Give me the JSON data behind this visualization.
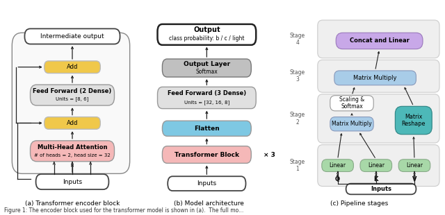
{
  "fig_width": 6.4,
  "fig_height": 3.1,
  "bg_color": "#ffffff",
  "subfig_labels": [
    "(a) Transformer encoder block",
    "(b) Model architecture",
    "(c) Pipeline stages"
  ],
  "caption": "Figure 1: The encoder block used for the transformer model is shown in (a).  The full mo...",
  "colors": {
    "white_box": "#ffffff",
    "gray_box": "#e0e0e0",
    "dark_gray_box": "#c0c0c0",
    "yellow_box": "#f0c84a",
    "red_box": "#f5b8b8",
    "blue_box": "#7ec8e3",
    "teal_box": "#4db8b8",
    "green_box": "#a8d8a8",
    "purple_box": "#c8a8e8",
    "light_blue_box": "#a8cce8",
    "stage1_bg": "#efefef",
    "stage2_bg": "#ebebeb",
    "stage3_bg": "#e8e8e8",
    "stage4_bg": "#e5e5e5"
  }
}
